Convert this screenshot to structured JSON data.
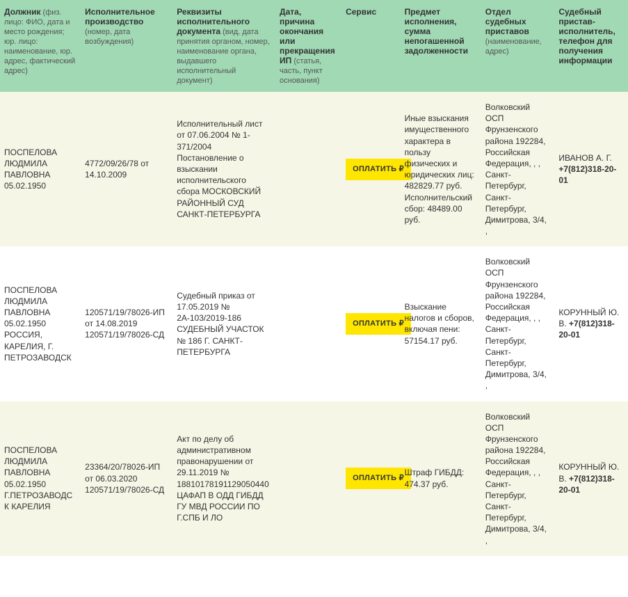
{
  "colors": {
    "header_bg": "#a0d9b4",
    "row_odd_bg": "#f6f6e7",
    "row_even_bg": "#ffffff",
    "pay_btn_bg": "#ffe600",
    "text": "#333333",
    "subtext": "#555555"
  },
  "columns": [
    {
      "title": "Должник",
      "sub": " (физ. лицо: ФИО, дата и место рождения; юр. лицо: наименование, юр. адрес, фактический адрес)"
    },
    {
      "title": "Исполнительное производство",
      "sub": " (номер, дата возбуждения)"
    },
    {
      "title": "Реквизиты исполнительного документа",
      "sub": " (вид, дата принятия органом, номер, наименование органа, выдавшего исполнительный документ)"
    },
    {
      "title": "Дата, причина окончания или прекращения ИП",
      "sub": " (статья, часть, пункт основания)"
    },
    {
      "title": "Сервис",
      "sub": ""
    },
    {
      "title": "Предмет исполнения, сумма непогашенной задолженности",
      "sub": ""
    },
    {
      "title": "Отдел судебных приставов",
      "sub": " (наименование, адрес)"
    },
    {
      "title": "Судебный пристав-исполнитель, телефон для получения информации",
      "sub": ""
    }
  ],
  "pay_label": "ОПЛАТИТЬ ₽",
  "rows": [
    {
      "debtor": "ПОСПЕЛОВА ЛЮДМИЛА ПАВЛОВНА 05.02.1950",
      "proceeding": "4772/09/26/78 от 14.10.2009",
      "document": "Исполнительный лист от 07.06.2004 № 1-371/2004 Постановление о взыскании исполнительского сбора МОСКОВСКИЙ РАЙОННЫЙ СУД САНКТ-ПЕТЕРБУРГА",
      "termination": "",
      "subject": "Иные взыскания имущественного характера в пользу физических и юридических лиц: 482829.77 руб. Исполнительский сбор: 48489.00 руб.",
      "department": "Волковский ОСП Фрунзенского района 192284, Российская Федерация, , , Санкт-Петербург, Санкт-Петербург, Димитрова, 3/4, ,",
      "officer_name": "ИВАНОВ А. Г.",
      "officer_phone": "+7(812)318-20-01"
    },
    {
      "debtor": "ПОСПЕЛОВА ЛЮДМИЛА ПАВЛОВНА 05.02.1950 РОССИЯ, КАРЕЛИЯ, Г. ПЕТРОЗАВОДСК",
      "proceeding": "120571/19/78026-ИП от 14.08.2019 120571/19/78026-СД",
      "document": "Судебный приказ от 17.05.2019 № 2А-103/2019-186 СУДЕБНЫЙ УЧАСТОК № 186 Г. САНКТ-ПЕТЕРБУРГА",
      "termination": "",
      "subject": "Взыскание налогов и сборов, включая пени: 57154.17 руб.",
      "department": "Волковский ОСП Фрунзенского района 192284, Российская Федерация, , , Санкт-Петербург, Санкт-Петербург, Димитрова, 3/4, ,",
      "officer_name": "КОРУННЫЙ Ю. В.",
      "officer_phone": "+7(812)318-20-01"
    },
    {
      "debtor": "ПОСПЕЛОВА ЛЮДМИЛА ПАВЛОВНА 05.02.1950 Г.ПЕТРОЗАВОДСК КАРЕЛИЯ",
      "proceeding": "23364/20/78026-ИП от 06.03.2020 120571/19/78026-СД",
      "document": "Акт по делу об административном правонарушении от 29.11.2019 № 18810178191129050440 ЦАФАП В ОДД ГИБДД ГУ МВД РОССИИ ПО Г.СПБ И ЛО",
      "termination": "",
      "subject": "Штраф ГИБДД: 474.37 руб.",
      "department": "Волковский ОСП Фрунзенского района 192284, Российская Федерация, , , Санкт-Петербург, Санкт-Петербург, Димитрова, 3/4, ,",
      "officer_name": "КОРУННЫЙ Ю. В.",
      "officer_phone": "+7(812)318-20-01"
    }
  ]
}
